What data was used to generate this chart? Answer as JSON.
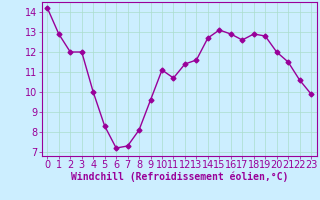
{
  "x": [
    0,
    1,
    2,
    3,
    4,
    5,
    6,
    7,
    8,
    9,
    10,
    11,
    12,
    13,
    14,
    15,
    16,
    17,
    18,
    19,
    20,
    21,
    22,
    23
  ],
  "y": [
    14.2,
    12.9,
    12.0,
    12.0,
    10.0,
    8.3,
    7.2,
    7.3,
    8.1,
    9.6,
    11.1,
    10.7,
    11.4,
    11.6,
    12.7,
    13.1,
    12.9,
    12.6,
    12.9,
    12.8,
    12.0,
    11.5,
    10.6,
    9.9
  ],
  "line_color": "#990099",
  "marker": "D",
  "markersize": 2.5,
  "linewidth": 1.0,
  "bg_color": "#cceeff",
  "grid_color": "#aaddcc",
  "xlabel": "Windchill (Refroidissement éolien,°C)",
  "xlabel_fontsize": 7,
  "tick_fontsize": 7,
  "xlim": [
    -0.5,
    23.5
  ],
  "ylim": [
    6.8,
    14.5
  ],
  "yticks": [
    7,
    8,
    9,
    10,
    11,
    12,
    13,
    14
  ],
  "xticks": [
    0,
    1,
    2,
    3,
    4,
    5,
    6,
    7,
    8,
    9,
    10,
    11,
    12,
    13,
    14,
    15,
    16,
    17,
    18,
    19,
    20,
    21,
    22,
    23
  ]
}
